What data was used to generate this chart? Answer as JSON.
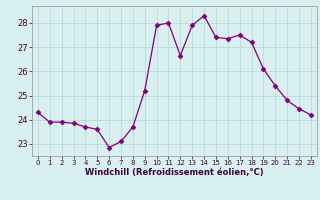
{
  "x": [
    0,
    1,
    2,
    3,
    4,
    5,
    6,
    7,
    8,
    9,
    10,
    11,
    12,
    13,
    14,
    15,
    16,
    17,
    18,
    19,
    20,
    21,
    22,
    23
  ],
  "y": [
    24.3,
    23.9,
    23.9,
    23.85,
    23.7,
    23.6,
    22.85,
    23.1,
    23.7,
    25.2,
    27.9,
    28.0,
    26.65,
    27.9,
    28.3,
    27.4,
    27.35,
    27.5,
    27.2,
    26.1,
    25.4,
    24.8,
    24.45,
    24.2
  ],
  "line_color": "#800080",
  "marker": "D",
  "marker_size": 2.5,
  "bg_color": "#d8f0f0",
  "grid_color": "#b8d4d4",
  "xlabel": "Windchill (Refroidissement éolien,°C)",
  "ylabel_ticks": [
    23,
    24,
    25,
    26,
    27,
    28
  ],
  "xlim": [
    -0.5,
    23.5
  ],
  "ylim": [
    22.5,
    28.7
  ]
}
